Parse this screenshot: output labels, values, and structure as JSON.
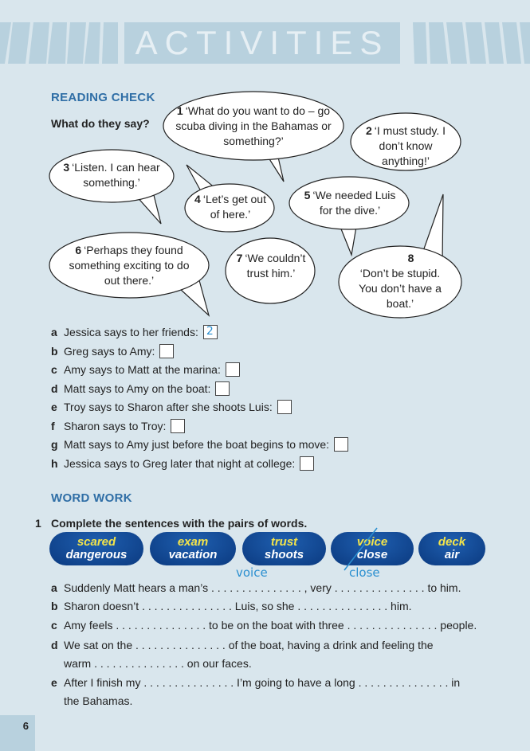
{
  "header": {
    "title": "ACTIVITIES"
  },
  "reading_check": {
    "heading": "READING CHECK",
    "question": "What do they say?",
    "bubbles": [
      {
        "num": "1",
        "text": "‘What do you want to do – go scuba diving in the Bahamas or something?’"
      },
      {
        "num": "2",
        "text": "‘I must study. I don’t know anything!’"
      },
      {
        "num": "3",
        "text": "‘Listen. I can hear something.’"
      },
      {
        "num": "4",
        "text": "‘Let’s get out of here.’"
      },
      {
        "num": "5",
        "text": "‘We needed Luis for the dive.’"
      },
      {
        "num": "6",
        "text": "‘Perhaps they found something exciting to do out there.’"
      },
      {
        "num": "7",
        "text": "‘We couldn’t trust him.’"
      },
      {
        "num": "8",
        "text": "‘Don’t be stupid. You don’t have a boat.’"
      }
    ],
    "items": [
      {
        "letter": "a",
        "text": "Jessica says to her friends:",
        "answer": "2"
      },
      {
        "letter": "b",
        "text": "Greg says to Amy:",
        "answer": ""
      },
      {
        "letter": "c",
        "text": "Amy says to Matt at the marina:",
        "answer": ""
      },
      {
        "letter": "d",
        "text": "Matt says to Amy on the boat:",
        "answer": ""
      },
      {
        "letter": "e",
        "text": "Troy says to Sharon after she shoots Luis:",
        "answer": ""
      },
      {
        "letter": "f",
        "text": "Sharon says to Troy:",
        "answer": ""
      },
      {
        "letter": "g",
        "text": "Matt says to Amy just before the boat begins to move:",
        "answer": ""
      },
      {
        "letter": "h",
        "text": "Jessica says to Greg later that night at college:",
        "answer": ""
      }
    ]
  },
  "word_work": {
    "heading": "WORD WORK",
    "exercise_num": "1",
    "instruction": "Complete the sentences with the pairs of words.",
    "pairs": [
      {
        "w1": "scared",
        "w2": "dangerous",
        "crossed": false
      },
      {
        "w1": "exam",
        "w2": "vacation",
        "crossed": false
      },
      {
        "w1": "trust",
        "w2": "shoots",
        "crossed": false
      },
      {
        "w1": "voice",
        "w2": "close",
        "crossed": true
      },
      {
        "w1": "deck",
        "w2": "air",
        "crossed": false
      }
    ],
    "sentences": [
      {
        "letter": "a",
        "lines": [
          "Suddenly Matt hears a man’s . . . . . . . . . . . . . . . , very . . . . . . . . . . . . . . . to him."
        ],
        "answers": [
          "voice",
          "close"
        ]
      },
      {
        "letter": "b",
        "lines": [
          "Sharon doesn’t . . . . . . . . . . . . . . . Luis, so she . . . . . . . . . . . . . . . him."
        ]
      },
      {
        "letter": "c",
        "lines": [
          "Amy feels . . . . . . . . . . . . . . . to be on the boat with three . . . . . . . . . . . . . . . people."
        ]
      },
      {
        "letter": "d",
        "lines": [
          "We sat on the . . . . . . . . . . . . . . . of the boat, having a drink and feeling the",
          "warm . . . . . . . . . . . . . . . on our faces."
        ]
      },
      {
        "letter": "e",
        "lines": [
          "After I finish my . . . . . . . . . . . . . . . I’m going to have a long . . . . . . . . . . . . . . . in",
          "the Bahamas."
        ]
      }
    ]
  },
  "page_number": "6",
  "colors": {
    "background": "#d9e6ed",
    "banner": "#b8d1de",
    "heading": "#2f6ea6",
    "pill": "#0b3a80",
    "pill_top_word": "#f3e44a",
    "handwriting": "#2a8fd0"
  }
}
